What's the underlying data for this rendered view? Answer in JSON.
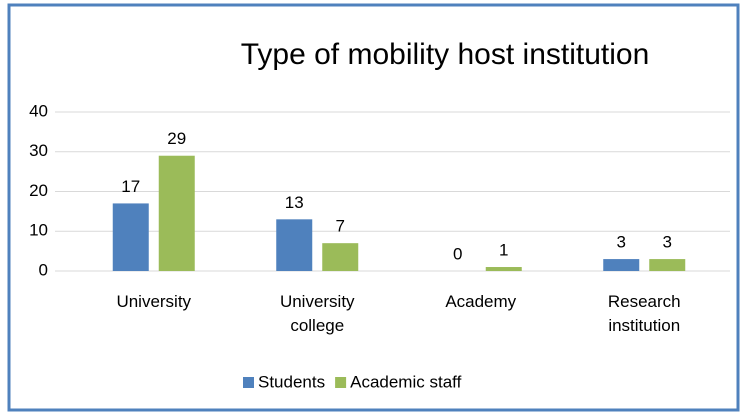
{
  "chart_data": {
    "type": "bar",
    "title": "Type of mobility host institution",
    "categories": [
      "University",
      "University college",
      "Academy",
      "Research institution"
    ],
    "series": [
      {
        "name": "Students",
        "color": "#4f81bd",
        "values": [
          17,
          13,
          0,
          3
        ]
      },
      {
        "name": "Academic staff",
        "color": "#9bbb59",
        "values": [
          29,
          7,
          1,
          3
        ]
      }
    ],
    "ylim": [
      0,
      40
    ],
    "yticks": [
      0,
      10,
      20,
      30,
      40
    ],
    "grid": true,
    "legend": "bottom"
  }
}
